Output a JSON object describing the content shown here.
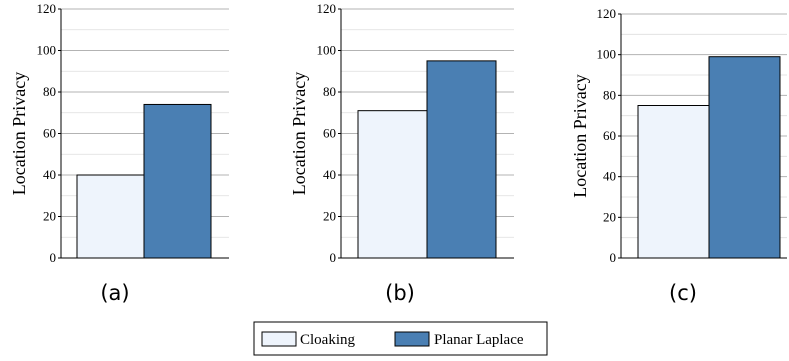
{
  "chart_data": [
    {
      "type": "bar",
      "categories": [
        "Cloaking",
        "Planar Laplace"
      ],
      "values": [
        40,
        74
      ],
      "ylabel": "Location Privacy",
      "ylim": [
        0,
        120
      ],
      "yticks": [
        0,
        20,
        40,
        60,
        80,
        100,
        120
      ],
      "panel_label": "(a)",
      "grid": true
    },
    {
      "type": "bar",
      "categories": [
        "Cloaking",
        "Planar Laplace"
      ],
      "values": [
        71,
        95
      ],
      "ylabel": "Location Privacy",
      "ylim": [
        0,
        120
      ],
      "yticks": [
        0,
        20,
        40,
        60,
        80,
        100,
        120
      ],
      "panel_label": "(b)",
      "grid": true
    },
    {
      "type": "bar",
      "categories": [
        "Cloaking",
        "Planar Laplace"
      ],
      "values": [
        75,
        99
      ],
      "ylabel": "Location Privacy",
      "ylim": [
        0,
        120
      ],
      "yticks": [
        0,
        20,
        40,
        60,
        80,
        100,
        120
      ],
      "panel_label": "(c)",
      "grid": true
    }
  ],
  "legend": {
    "placement": "bottom-center",
    "items": [
      {
        "label": "Cloaking",
        "color": "#eef4fc"
      },
      {
        "label": "Planar Laplace",
        "color": "#4a7fb3"
      }
    ]
  },
  "colors": {
    "cloaking": "#eef4fc",
    "planar_laplace": "#4a7fb3",
    "grid": "#b3b3b3",
    "axis": "#000000"
  }
}
